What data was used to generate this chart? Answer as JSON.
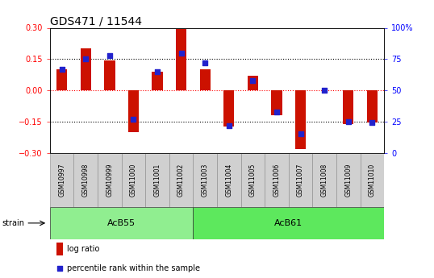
{
  "title": "GDS471 / 11544",
  "samples": [
    "GSM10997",
    "GSM10998",
    "GSM10999",
    "GSM11000",
    "GSM11001",
    "GSM11002",
    "GSM11003",
    "GSM11004",
    "GSM11005",
    "GSM11006",
    "GSM11007",
    "GSM11008",
    "GSM11009",
    "GSM11010"
  ],
  "log_ratio": [
    0.1,
    0.2,
    0.145,
    -0.2,
    0.09,
    0.295,
    0.1,
    -0.175,
    0.07,
    -0.12,
    -0.28,
    0.0,
    -0.16,
    -0.155
  ],
  "percentile": [
    67,
    75,
    78,
    27,
    65,
    80,
    72,
    22,
    58,
    33,
    15,
    50,
    25,
    24
  ],
  "groups": [
    {
      "name": "AcB55",
      "start": 0,
      "end": 5,
      "color": "#90ee90"
    },
    {
      "name": "AcB61",
      "start": 6,
      "end": 13,
      "color": "#5de85d"
    }
  ],
  "bar_color": "#cc1100",
  "dot_color": "#2222cc",
  "ylim": [
    -0.3,
    0.3
  ],
  "y2lim": [
    0,
    100
  ],
  "yticks": [
    -0.3,
    -0.15,
    0.0,
    0.15,
    0.3
  ],
  "y2ticks": [
    0,
    25,
    50,
    75,
    100
  ],
  "hlines": [
    0.15,
    0.0,
    -0.15
  ],
  "hline_colors": [
    "black",
    "red",
    "black"
  ],
  "bar_width": 0.45,
  "dot_size": 18,
  "background_color": "#ffffff",
  "strain_label": "strain",
  "legend_log_ratio": "log ratio",
  "legend_percentile": "percentile rank within the sample",
  "title_fontsize": 10,
  "tick_fontsize": 7,
  "group_label_fontsize": 8,
  "sample_fontsize": 5.5,
  "legend_fontsize": 7
}
